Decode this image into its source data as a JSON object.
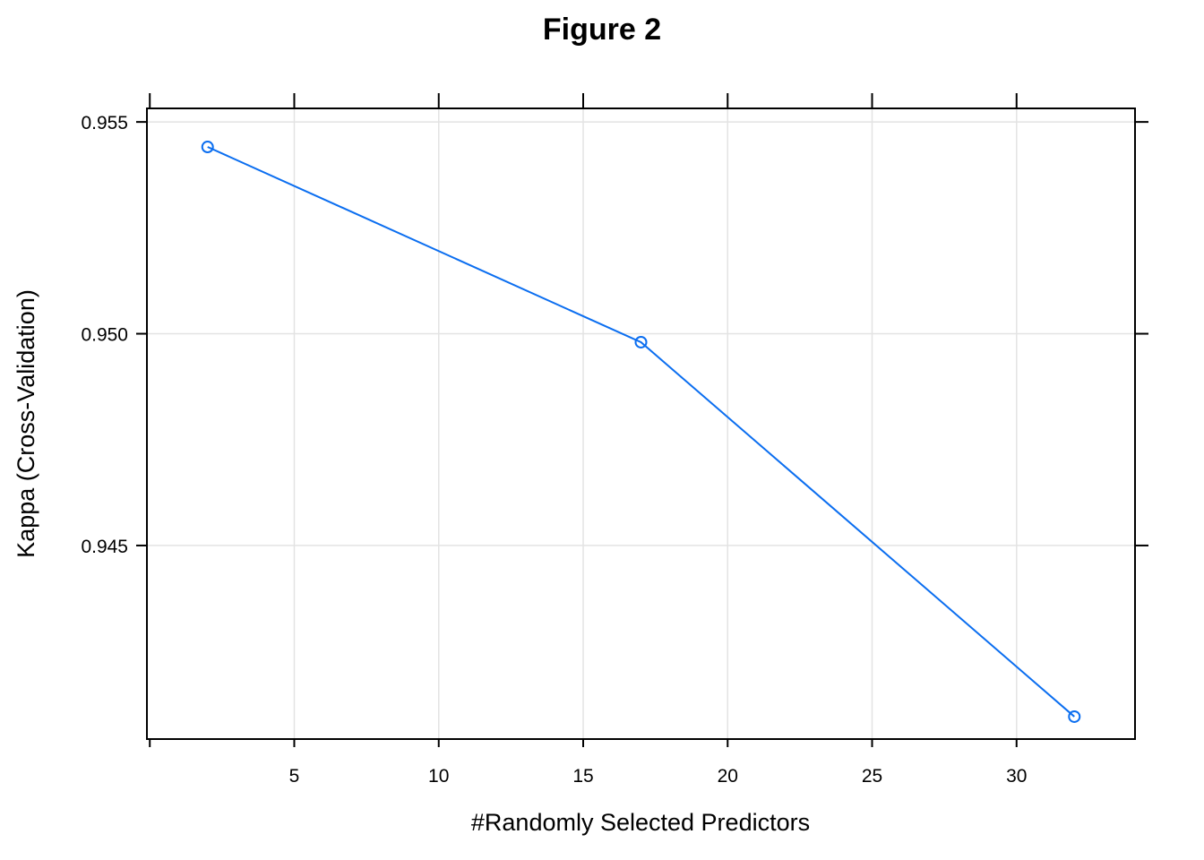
{
  "chart_data": {
    "type": "line",
    "title": "Figure 2",
    "xlabel": "#Randomly Selected Predictors",
    "ylabel": "Kappa (Cross-Validation)",
    "x": [
      2,
      17,
      32
    ],
    "series": [
      {
        "values": [
          0.95441,
          0.9498,
          0.94096
        ]
      }
    ],
    "xlim": [
      -0.1,
      34.1
    ],
    "ylim": [
      0.94043,
      0.95532
    ],
    "xticks": [
      0,
      5,
      10,
      15,
      20,
      25,
      30
    ],
    "xtick_labels": [
      "",
      "5",
      "10",
      "15",
      "20",
      "25",
      "30"
    ],
    "yticks": [
      0.945,
      0.95,
      0.955
    ],
    "ytick_labels": [
      "0.945",
      "0.950",
      "0.955"
    ],
    "grid": true,
    "markers": "open-circle",
    "line_color": "#0b6ef0",
    "grid_color": "#e3e3e3"
  }
}
